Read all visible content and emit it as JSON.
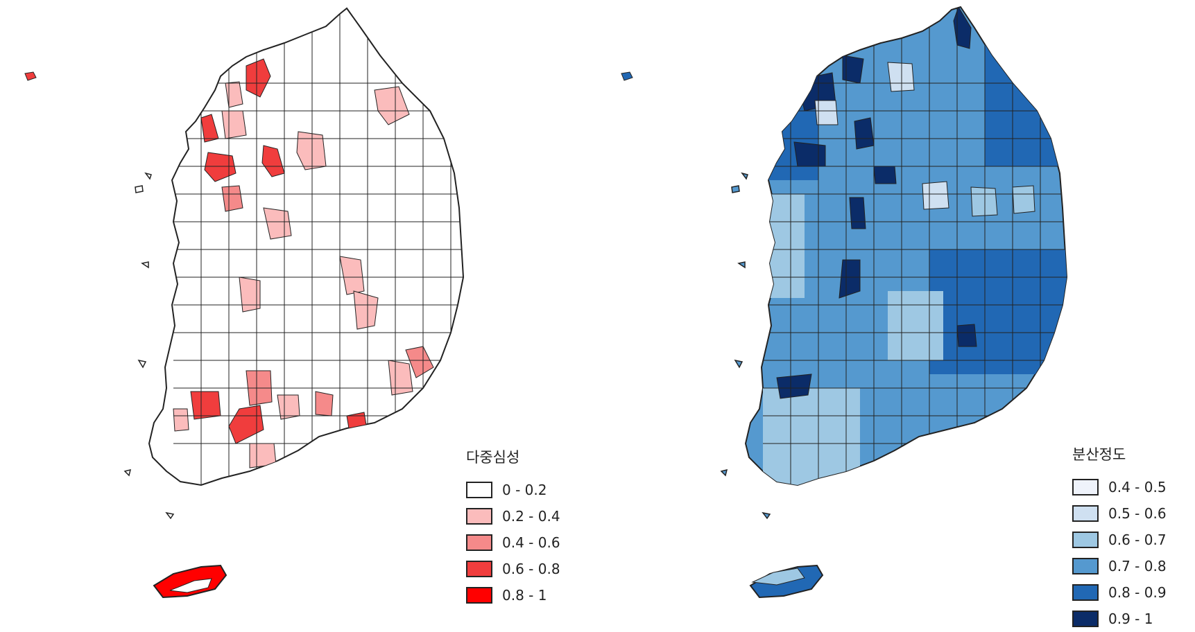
{
  "maps": [
    {
      "legend_title": "다중심성",
      "classes": [
        {
          "label": "0 - 0.2",
          "color": "#ffffff"
        },
        {
          "label": "0.2 - 0.4",
          "color": "#fbbcbc"
        },
        {
          "label": "0.4 - 0.6",
          "color": "#f58a8a"
        },
        {
          "label": "0.6 - 0.8",
          "color": "#f03d3d"
        },
        {
          "label": "0.8 - 1",
          "color": "#ff0000"
        }
      ]
    },
    {
      "legend_title": "분산정도",
      "classes": [
        {
          "label": "0.4 - 0.5",
          "color": "#eff3fb"
        },
        {
          "label": "0.5 - 0.6",
          "color": "#cfe0f1"
        },
        {
          "label": "0.6 - 0.7",
          "color": "#9ec8e3"
        },
        {
          "label": "0.7 - 0.8",
          "color": "#5599cf"
        },
        {
          "label": "0.8 - 0.9",
          "color": "#2168b4"
        },
        {
          "label": "0.9 - 1",
          "color": "#0b2c68"
        }
      ]
    }
  ]
}
